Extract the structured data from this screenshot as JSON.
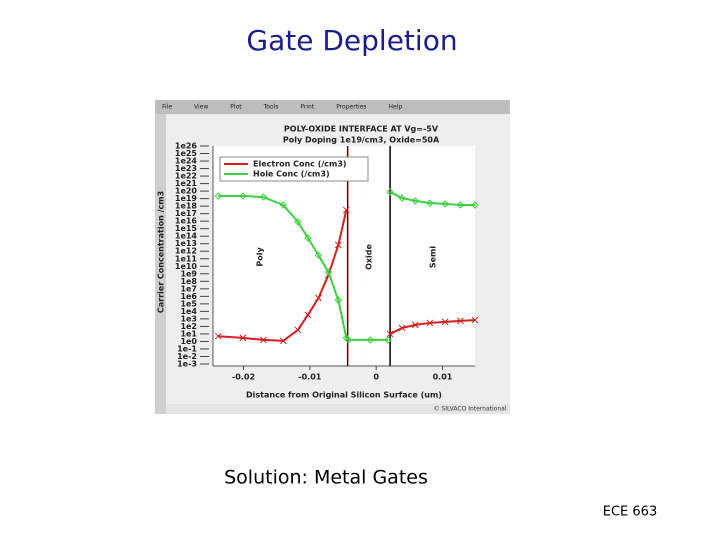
{
  "slide": {
    "title": "Gate Depletion",
    "caption": "Solution: Metal Gates",
    "footer": "ECE 663"
  },
  "window": {
    "menu": [
      "File",
      "View",
      "Plot",
      "Tools",
      "Print",
      "Properties",
      "Help"
    ],
    "credit": "© SILVACO International"
  },
  "chart_data": {
    "type": "line",
    "title": "POLY-OXIDE INTERFACE AT Vg=-5V",
    "subtitle": "Poly Doping 1e19/cm3, Oxide=50A",
    "xlabel": "Distance from Original Silicon Surface (um)",
    "ylabel": "Carrier Concentration /cm3",
    "log_y": true,
    "grid": false,
    "xlim": [
      -0.0246,
      0.0149
    ],
    "xticks": [
      -0.02,
      -0.01,
      0,
      0.01
    ],
    "ylim": [
      0.001,
      1e+26
    ],
    "yticks": [
      {
        "value": 1e+26,
        "label": "1e26"
      },
      {
        "value": 1e+25,
        "label": "1e25"
      },
      {
        "value": 1e+24,
        "label": "1e24"
      },
      {
        "value": 1e+23,
        "label": "1e23"
      },
      {
        "value": 1e+22,
        "label": "1e22"
      },
      {
        "value": 1e+21,
        "label": "1e21"
      },
      {
        "value": 1e+20,
        "label": "1e20"
      },
      {
        "value": 1e+19,
        "label": "1e19"
      },
      {
        "value": 1e+18,
        "label": "1e18"
      },
      {
        "value": 1e+17,
        "label": "1e17"
      },
      {
        "value": 1e+16,
        "label": "1e16"
      },
      {
        "value": 1000000000000000.0,
        "label": "1e15"
      },
      {
        "value": 100000000000000.0,
        "label": "1e14"
      },
      {
        "value": 10000000000000.0,
        "label": "1e13"
      },
      {
        "value": 1000000000000.0,
        "label": "1e12"
      },
      {
        "value": 100000000000.0,
        "label": "1e11"
      },
      {
        "value": 10000000000.0,
        "label": "1e10"
      },
      {
        "value": 1000000000.0,
        "label": "1e9"
      },
      {
        "value": 100000000.0,
        "label": "1e8"
      },
      {
        "value": 10000000.0,
        "label": "1e7"
      },
      {
        "value": 1000000.0,
        "label": "1e6"
      },
      {
        "value": 100000.0,
        "label": "1e5"
      },
      {
        "value": 10000.0,
        "label": "1e4"
      },
      {
        "value": 1000.0,
        "label": "1e3"
      },
      {
        "value": 100,
        "label": "1e2"
      },
      {
        "value": 10,
        "label": "1e1"
      },
      {
        "value": 1,
        "label": "1e0"
      },
      {
        "value": 0.1,
        "label": "1e-1"
      },
      {
        "value": 0.01,
        "label": "1e-2"
      },
      {
        "value": 0.001,
        "label": "1e-3"
      }
    ],
    "boundaries": [
      -0.0043,
      0.0021
    ],
    "regions": [
      {
        "label": "Poly",
        "x": -0.0175
      },
      {
        "label": "Oxide",
        "x": -0.0011
      },
      {
        "label": "Semi",
        "x": 0.0086
      }
    ],
    "series": [
      {
        "name": "Electron Conc (/cm3)",
        "color": "#d42020",
        "marker": "x",
        "x": [
          -0.0238,
          -0.0201,
          -0.017,
          -0.014,
          -0.0118,
          -0.0103,
          -0.0087,
          -0.0072,
          -0.0057,
          -0.0045,
          null,
          0.0021,
          0.0039,
          0.0059,
          0.0081,
          0.0104,
          0.0127,
          0.0149
        ],
        "values": [
          5,
          3,
          1.6,
          1.2,
          34,
          3400,
          600000,
          700000000,
          7000000000000.0,
          3e+17,
          null,
          10,
          60,
          160,
          290,
          400,
          540,
          700
        ]
      },
      {
        "name": "Hole Conc (/cm3)",
        "color": "#3ed03e",
        "marker": "diamond",
        "x": [
          -0.0238,
          -0.0201,
          -0.017,
          -0.014,
          -0.0118,
          -0.0103,
          -0.0087,
          -0.0072,
          -0.0057,
          -0.0045,
          -0.0042,
          -0.0009,
          0.0018,
          null,
          0.0021,
          0.0039,
          0.0059,
          0.0081,
          0.0104,
          0.0127,
          0.0149
        ],
        "values": [
          2.2e+19,
          2.2e+19,
          1.6e+19,
          1.4e+18,
          8000000000000000.0,
          60000000000000.0,
          300000000000.0,
          1700000000,
          300000,
          3,
          1.6,
          1.6,
          1.6,
          null,
          7.6e+19,
          1.2e+19,
          5e+18,
          2.6e+18,
          2e+18,
          1.4e+18,
          1.4e+18
        ]
      }
    ]
  }
}
